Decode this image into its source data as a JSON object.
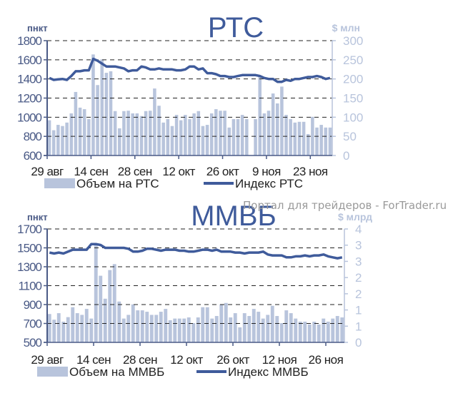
{
  "watermark": "Портал для трейдеров - ForTrader.ru",
  "colors": {
    "bar": "#b8c4dc",
    "line": "#3f5b9b",
    "grid": "#222222"
  },
  "chart_data": [
    {
      "type": "bar+line",
      "title": "РТС",
      "ylabel_left": "пнкт",
      "ylabel_right": "$ млн",
      "ylim_left": [
        600,
        1800
      ],
      "ylim_right": [
        0,
        300
      ],
      "yticks_left": [
        "600",
        "800",
        "1000",
        "1200",
        "1400",
        "1600",
        "1800"
      ],
      "yticks_right": [
        "0",
        "50",
        "100",
        "150",
        "200",
        "250",
        "300"
      ],
      "xticks": [
        {
          "index": 0,
          "label": "29 авг"
        },
        {
          "index": 10,
          "label": "14 сен"
        },
        {
          "index": 20,
          "label": "28 сен"
        },
        {
          "index": 30,
          "label": "12 окт"
        },
        {
          "index": 40,
          "label": "26 окт"
        },
        {
          "index": 50,
          "label": "9 ноя"
        },
        {
          "index": 60,
          "label": "23 ноя"
        }
      ],
      "grid": "dashed horizontal",
      "legend": {
        "bar_label": "Объем на РТС",
        "line_label": "Индекс РТС",
        "placement": "bottom"
      },
      "bars_name": "Объем на РТС",
      "bars": [
        92,
        66,
        80,
        77,
        86,
        110,
        166,
        125,
        121,
        95,
        264,
        184,
        251,
        216,
        220,
        116,
        71,
        116,
        117,
        110,
        110,
        103,
        116,
        117,
        175,
        130,
        86,
        95,
        77,
        106,
        92,
        106,
        95,
        110,
        116,
        77,
        80,
        110,
        121,
        117,
        117,
        73,
        95,
        95,
        106,
        95,
        0,
        95,
        205,
        110,
        117,
        162,
        136,
        180,
        106,
        95,
        86,
        88,
        88,
        56,
        101,
        73,
        80,
        73,
        73
      ],
      "line_name": "Индекс РТС",
      "line": [
        1410,
        1390,
        1395,
        1400,
        1390,
        1430,
        1480,
        1480,
        1490,
        1490,
        1610,
        1590,
        1560,
        1530,
        1530,
        1530,
        1520,
        1510,
        1480,
        1490,
        1490,
        1530,
        1520,
        1500,
        1500,
        1510,
        1500,
        1500,
        1500,
        1490,
        1490,
        1500,
        1530,
        1530,
        1500,
        1510,
        1460,
        1460,
        1450,
        1430,
        1430,
        1420,
        1420,
        1430,
        1440,
        1440,
        1440,
        1440,
        1430,
        1410,
        1400,
        1400,
        1370,
        1370,
        1390,
        1380,
        1400,
        1400,
        1410,
        1420,
        1420,
        1430,
        1420,
        1400,
        1410
      ]
    },
    {
      "type": "bar+line",
      "title": "ММВБ",
      "ylabel_left": "пнкт",
      "ylabel_right": "$ млрд",
      "ylim_left": [
        500,
        1700
      ],
      "ylim_right": [
        0,
        4
      ],
      "yticks_left": [
        "500",
        "700",
        "900",
        "1100",
        "1300",
        "1500",
        "1700"
      ],
      "yticks_right": [
        "0",
        "1",
        "1",
        "2",
        "2",
        "3",
        "3",
        "4"
      ],
      "xticks": [
        {
          "index": 0,
          "label": "29 авг"
        },
        {
          "index": 10,
          "label": "14 сен"
        },
        {
          "index": 20,
          "label": "28 сен"
        },
        {
          "index": 30,
          "label": "12 окт"
        },
        {
          "index": 40,
          "label": "26 окт"
        },
        {
          "index": 50,
          "label": "12 ноя"
        },
        {
          "index": 60,
          "label": "26 ноя"
        }
      ],
      "grid": "dashed horizontal",
      "legend": {
        "bar_label": "Объем на ММВБ",
        "line_label": "Индекс ММВБ",
        "placement": "bottom"
      },
      "bars_name": "Объем на ММВБ",
      "bars": [
        1.0,
        0.8,
        1.03,
        0.73,
        0.89,
        1.24,
        1.03,
        0.97,
        1.18,
        0.84,
        3.42,
        2.35,
        1.54,
        2.55,
        2.76,
        1.44,
        0.84,
        0.97,
        1.34,
        1.13,
        1.13,
        1.08,
        0.97,
        0.97,
        1.08,
        1.18,
        0.78,
        0.84,
        0.84,
        0.84,
        0.88,
        0.68,
        0.88,
        1.24,
        1.24,
        0.84,
        0.93,
        1.34,
        1.39,
        0.88,
        1.03,
        0.53,
        1.03,
        0.93,
        1.18,
        1.08,
        0.84,
        0.97,
        1.29,
        0.93,
        0.68,
        1.13,
        1.03,
        0.84,
        0.73,
        0.73,
        0.63,
        0.73,
        0.63,
        0.84,
        0.73,
        0.84,
        0.93,
        0.88
      ],
      "line_name": "Индекс ММВБ",
      "line": [
        1450,
        1440,
        1450,
        1440,
        1460,
        1480,
        1480,
        1480,
        1480,
        1540,
        1540,
        1530,
        1500,
        1500,
        1500,
        1500,
        1500,
        1490,
        1460,
        1460,
        1470,
        1490,
        1490,
        1480,
        1470,
        1480,
        1480,
        1480,
        1470,
        1470,
        1460,
        1460,
        1470,
        1480,
        1480,
        1470,
        1480,
        1460,
        1460,
        1460,
        1450,
        1450,
        1440,
        1450,
        1450,
        1450,
        1460,
        1430,
        1420,
        1420,
        1420,
        1400,
        1400,
        1410,
        1410,
        1420,
        1410,
        1420,
        1420,
        1430,
        1410,
        1400,
        1390,
        1400
      ]
    }
  ]
}
